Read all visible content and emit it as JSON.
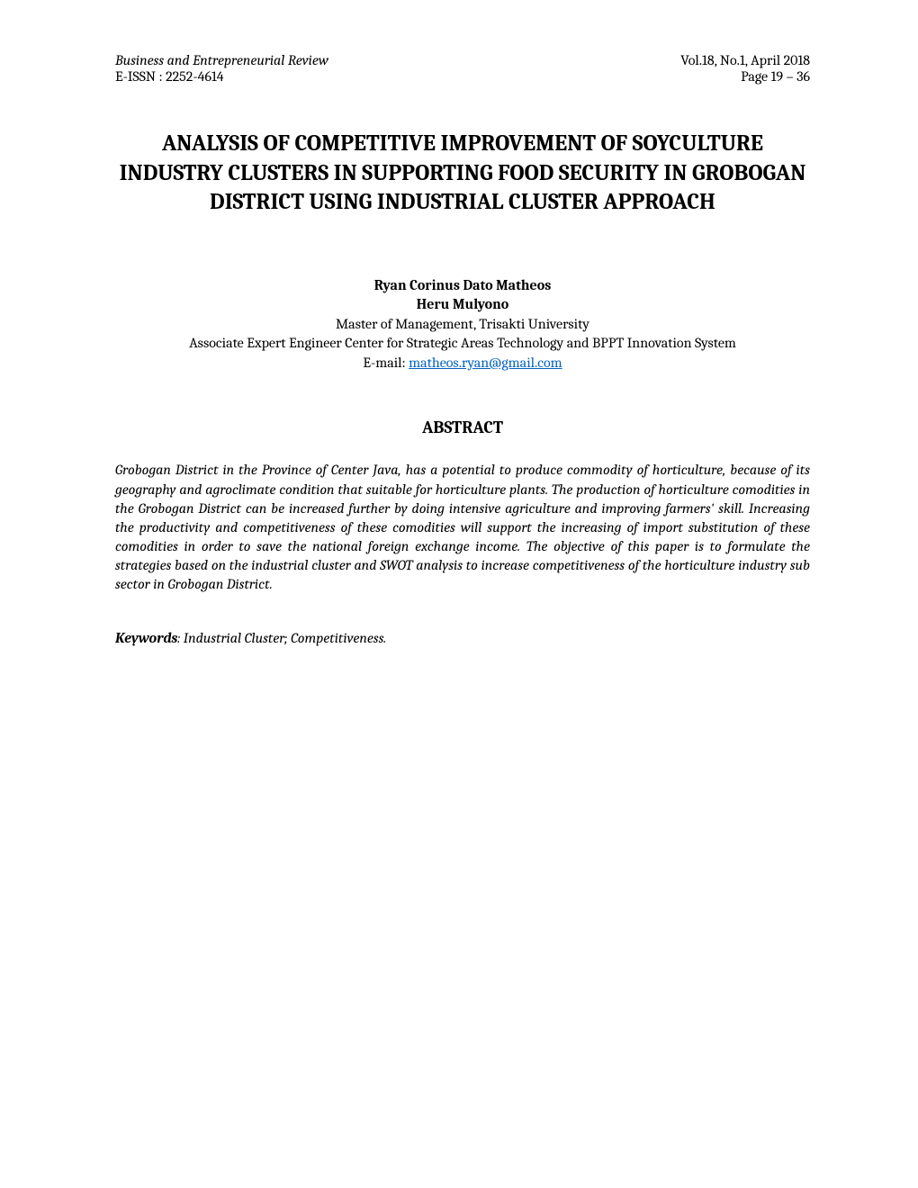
{
  "header": {
    "journal_name": "Business and Entrepreneurial Review",
    "issn": "E-ISSN : 2252-4614",
    "volume_info": "Vol.18, No.1, April 2018",
    "page_range": "Page 19 – 36"
  },
  "title": "ANALYSIS OF COMPETITIVE IMPROVEMENT OF SOYCULTURE INDUSTRY CLUSTERS IN SUPPORTING FOOD SECURITY IN GROBOGAN DISTRICT USING INDUSTRIAL CLUSTER APPROACH",
  "authors": {
    "author1": "Ryan Corinus Dato Matheos",
    "author2": "Heru Mulyono",
    "affiliation1": "Master of Management, Trisakti University",
    "affiliation2": "Associate Expert Engineer Center for Strategic Areas Technology and BPPT Innovation System",
    "email_label": "E-mail: ",
    "email": "matheos.ryan@gmail.com"
  },
  "abstract": {
    "heading": "ABSTRACT",
    "text": "Grobogan District in the Province of Center Java, has a potential to produce commodity of horticulture, because of its geography and agroclimate condition that suitable for horticulture plants. The production of horticulture comodities in the Grobogan District can be increased further by doing intensive agriculture and improving farmers' skill. Increasing the productivity and competitiveness of these comodities will support the increasing of import substitution of these comodities in order to save the national foreign exchange income.  The objective of this paper is to formulate the strategies based on the industrial cluster and SWOT analysis to increase competitiveness of the horticulture industry sub sector in Grobogan District."
  },
  "keywords": {
    "label": "Keywords",
    "text": ": Industrial Cluster; Competitiveness."
  },
  "colors": {
    "background": "#ffffff",
    "text": "#000000",
    "link": "#0563c1"
  },
  "typography": {
    "body_fontsize": 16,
    "title_fontsize": 25,
    "abstract_heading_fontsize": 19,
    "font_family": "Cambria, Georgia, serif"
  }
}
